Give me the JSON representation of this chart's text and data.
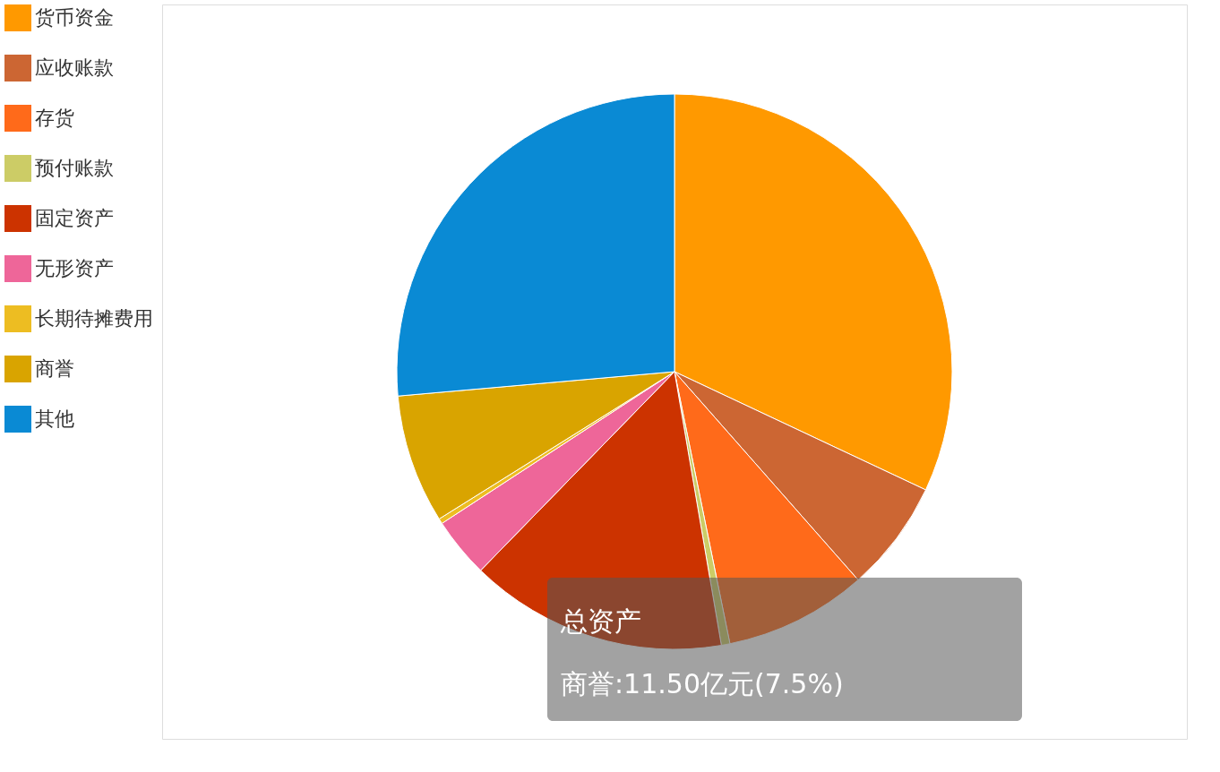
{
  "chart_data": {
    "type": "pie",
    "categories": [
      "货币资金",
      "应收账款",
      "存货",
      "预付账款",
      "固定资产",
      "无形资产",
      "长期待摊费用",
      "商誉",
      "其他"
    ],
    "values": [
      32,
      6.5,
      8.3,
      0.5,
      15,
      3.5,
      0.3,
      7.5,
      26.4
    ],
    "colors": [
      "#ff9900",
      "#cc6633",
      "#ff6a1a",
      "#cccc66",
      "#cc3300",
      "#ee6699",
      "#edbd22",
      "#d9a400",
      "#0a8ad4"
    ],
    "legend": "left",
    "annotations": [
      "总资产",
      "商誉:11.50亿元(7.5%)"
    ]
  }
}
